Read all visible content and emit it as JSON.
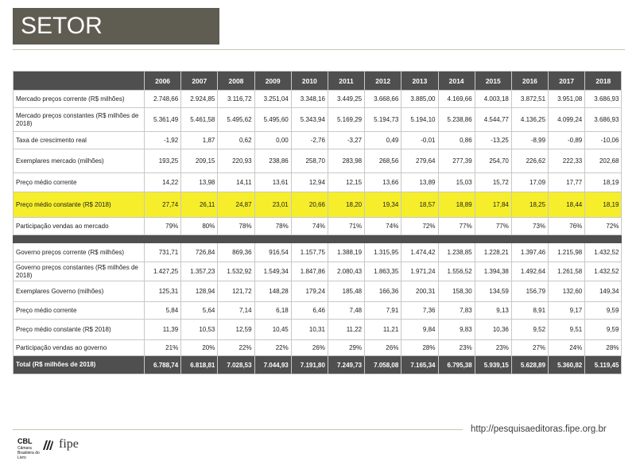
{
  "title": "SETOR",
  "footer_url": "http://pesquisaeditoras.fipe.org.br",
  "logos": {
    "cbl": "CBL",
    "cbl_sub": "Câmara Brasileira do Livro",
    "fipe": "fipe"
  },
  "highlight_color": "#f6ee2a",
  "header_color": "#4f4f4f",
  "table": {
    "years": [
      "2006",
      "2007",
      "2008",
      "2009",
      "2010",
      "2011",
      "2012",
      "2013",
      "2014",
      "2015",
      "2016",
      "2017",
      "2018"
    ],
    "rows": [
      {
        "label": "Mercado preços corrente (R$ milhões)",
        "h": 22,
        "values": [
          "2.748,66",
          "2.924,85",
          "3.116,72",
          "3.251,04",
          "3.348,16",
          "3.449,25",
          "3.668,66",
          "3.885,00",
          "4.169,66",
          "4.003,18",
          "3.872,51",
          "3.951,08",
          "3.686,93"
        ]
      },
      {
        "label": "Mercado preços constantes (R$ milhões de 2018)",
        "h": 30,
        "values": [
          "5.361,49",
          "5.461,58",
          "5.495,62",
          "5.495,60",
          "5.343,94",
          "5.169,29",
          "5.194,73",
          "5.194,10",
          "5.238,86",
          "4.544,77",
          "4.136,25",
          "4.099,24",
          "3.686,93"
        ]
      },
      {
        "label": "Taxa de crescimento real",
        "h": 22,
        "values": [
          "-1,92",
          "1,87",
          "0,62",
          "0,00",
          "-2,76",
          "-3,27",
          "0,49",
          "-0,01",
          "0,86",
          "-13,25",
          "-8,99",
          "-0,89",
          "-10,06"
        ]
      },
      {
        "label": "Exemplares mercado (milhões)",
        "h": 30,
        "values": [
          "193,25",
          "209,15",
          "220,93",
          "238,86",
          "258,70",
          "283,98",
          "268,56",
          "279,64",
          "277,39",
          "254,70",
          "226,62",
          "222,33",
          "202,68"
        ]
      },
      {
        "label": "Preço médio corrente",
        "h": 24,
        "values": [
          "14,22",
          "13,98",
          "14,11",
          "13,61",
          "12,94",
          "12,15",
          "13,66",
          "13,89",
          "15,03",
          "15,72",
          "17,09",
          "17,77",
          "18,19"
        ]
      },
      {
        "label": "Preço médio constante (R$ 2018)",
        "h": 32,
        "highlight": true,
        "values": [
          "27,74",
          "26,11",
          "24,87",
          "23,01",
          "20,66",
          "18,20",
          "19,34",
          "18,57",
          "18,89",
          "17,84",
          "18,25",
          "18,44",
          "18,19"
        ]
      },
      {
        "label": "Participação vendas ao mercado",
        "h": 22,
        "values": [
          "79%",
          "80%",
          "78%",
          "78%",
          "74%",
          "71%",
          "74%",
          "72%",
          "77%",
          "77%",
          "73%",
          "76%",
          "72%"
        ]
      },
      {
        "separator": true
      },
      {
        "label": "Governo preços  corrente (R$ milhões)",
        "h": 24,
        "values": [
          "731,71",
          "726,84",
          "869,36",
          "916,54",
          "1.157,75",
          "1.388,19",
          "1.315,95",
          "1.474,42",
          "1.238,85",
          "1.228,21",
          "1.397,46",
          "1.215,98",
          "1.432,52"
        ]
      },
      {
        "label": "Governo preços  constantes (R$ milhões de 2018)",
        "h": 24,
        "values": [
          "1.427,25",
          "1.357,23",
          "1.532,92",
          "1.549,34",
          "1.847,86",
          "2.080,43",
          "1.863,35",
          "1.971,24",
          "1.556,52",
          "1.394,38",
          "1.492,64",
          "1.261,58",
          "1.432,52"
        ]
      },
      {
        "label": "Exemplares  Governo (milhões)",
        "h": 26,
        "values": [
          "125,31",
          "128,94",
          "121,72",
          "148,28",
          "179,24",
          "185,48",
          "166,36",
          "200,31",
          "158,30",
          "134,59",
          "156,79",
          "132,60",
          "149,34"
        ]
      },
      {
        "label": "Preço médio corrente",
        "h": 22,
        "values": [
          "5,84",
          "5,64",
          "7,14",
          "6,18",
          "6,46",
          "7,48",
          "7,91",
          "7,36",
          "7,83",
          "9,13",
          "8,91",
          "9,17",
          "9,59"
        ]
      },
      {
        "label": "Preço médio constante (R$ 2018)",
        "h": 26,
        "values": [
          "11,39",
          "10,53",
          "12,59",
          "10,45",
          "10,31",
          "11,22",
          "11,21",
          "9,84",
          "9,83",
          "10,36",
          "9,52",
          "9,51",
          "9,59"
        ]
      },
      {
        "label": "Participação vendas ao  governo",
        "h": 20,
        "values": [
          "21%",
          "20%",
          "22%",
          "22%",
          "26%",
          "29%",
          "26%",
          "28%",
          "23%",
          "23%",
          "27%",
          "24%",
          "28%"
        ]
      },
      {
        "label": "Total (R$ milhões de 2018)",
        "total": true,
        "values": [
          "6.788,74",
          "6.818,81",
          "7.028,53",
          "7.044,93",
          "7.191,80",
          "7.249,73",
          "7.058,08",
          "7.165,34",
          "6.795,38",
          "5.939,15",
          "5.628,89",
          "5.360,82",
          "5.119,45"
        ]
      }
    ]
  }
}
